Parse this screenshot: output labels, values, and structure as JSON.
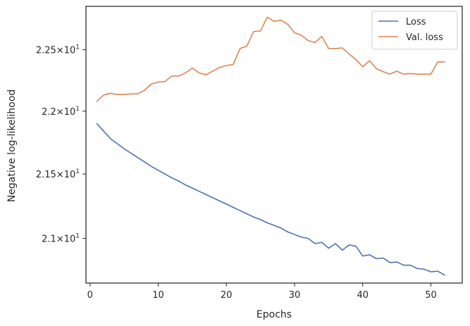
{
  "chart_data": {
    "type": "line",
    "title": "",
    "xlabel": "Epochs",
    "ylabel": "Negative log-likelihood",
    "xlim": [
      -0.6,
      54.6
    ],
    "ylim": [
      20.66,
      22.86
    ],
    "yscale": "log",
    "grid": false,
    "legend_position": "top-right",
    "x_ticks": [
      {
        "value": 0,
        "label": "0"
      },
      {
        "value": 10,
        "label": "10"
      },
      {
        "value": 20,
        "label": "20"
      },
      {
        "value": 30,
        "label": "30"
      },
      {
        "value": 40,
        "label": "40"
      },
      {
        "value": 50,
        "label": "50"
      }
    ],
    "y_ticks": [
      {
        "value": 21.0,
        "mantissa": "2.1",
        "exp": "1"
      },
      {
        "value": 21.5,
        "mantissa": "2.15",
        "exp": "1"
      },
      {
        "value": 22.0,
        "mantissa": "2.2",
        "exp": "1"
      },
      {
        "value": 22.5,
        "mantissa": "2.25",
        "exp": "1"
      }
    ],
    "x": [
      1,
      2,
      3,
      4,
      5,
      6,
      7,
      8,
      9,
      10,
      11,
      12,
      13,
      14,
      15,
      16,
      17,
      18,
      19,
      20,
      21,
      22,
      23,
      24,
      25,
      26,
      27,
      28,
      29,
      30,
      31,
      32,
      33,
      34,
      35,
      36,
      37,
      38,
      39,
      40,
      41,
      42,
      43,
      44,
      45,
      46,
      47,
      48,
      49,
      50,
      51,
      52
    ],
    "series": [
      {
        "name": "Loss",
        "color": "#4c72b0",
        "values": [
          21.9,
          21.84,
          21.78,
          21.74,
          21.7,
          21.665,
          21.63,
          21.595,
          21.56,
          21.53,
          21.5,
          21.47,
          21.445,
          21.415,
          21.39,
          21.365,
          21.34,
          21.315,
          21.29,
          21.265,
          21.24,
          21.215,
          21.19,
          21.165,
          21.145,
          21.12,
          21.1,
          21.08,
          21.05,
          21.03,
          21.01,
          21.0,
          20.96,
          20.97,
          20.925,
          20.96,
          20.91,
          20.95,
          20.94,
          20.865,
          20.875,
          20.845,
          20.85,
          20.815,
          20.82,
          20.795,
          20.795,
          20.77,
          20.765,
          20.745,
          20.75,
          20.72
        ]
      },
      {
        "name": "Val. loss",
        "color": "#dd8452",
        "values": [
          22.08,
          22.13,
          22.145,
          22.135,
          22.135,
          22.14,
          22.14,
          22.17,
          22.22,
          22.235,
          22.24,
          22.285,
          22.285,
          22.31,
          22.35,
          22.31,
          22.295,
          22.325,
          22.355,
          22.37,
          22.38,
          22.51,
          22.53,
          22.65,
          22.655,
          22.77,
          22.735,
          22.745,
          22.71,
          22.64,
          22.62,
          22.575,
          22.56,
          22.61,
          22.51,
          22.51,
          22.515,
          22.465,
          22.42,
          22.36,
          22.41,
          22.345,
          22.32,
          22.3,
          22.325,
          22.3,
          22.305,
          22.3,
          22.3,
          22.3,
          22.4,
          22.4
        ]
      }
    ]
  }
}
